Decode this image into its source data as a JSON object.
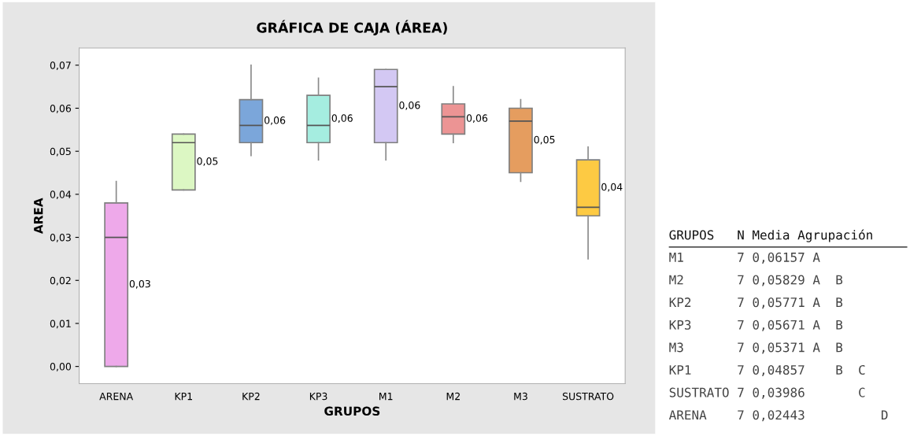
{
  "chart_data": [
    {
      "type": "box",
      "title": "GRÁFICA DE CAJA (ÁREA)",
      "xlabel": "GRUPOS",
      "ylabel": "AREA",
      "categories": [
        "ARENA",
        "KP1",
        "KP2",
        "KP3",
        "M1",
        "M2",
        "M3",
        "SUSTRATO"
      ],
      "colors": [
        "#eea9ea",
        "#dcf7c3",
        "#7ba6da",
        "#a5ede0",
        "#d3c8f3",
        "#ec9494",
        "#e59d5f",
        "#fdca43"
      ],
      "boxes": [
        {
          "low": 0.0,
          "q1": 0.0,
          "median": 0.03,
          "q3": 0.038,
          "high": 0.043
        },
        {
          "low": 0.041,
          "q1": 0.041,
          "median": 0.052,
          "q3": 0.054,
          "high": 0.054
        },
        {
          "low": 0.049,
          "q1": 0.052,
          "median": 0.056,
          "q3": 0.062,
          "high": 0.07
        },
        {
          "low": 0.048,
          "q1": 0.052,
          "median": 0.056,
          "q3": 0.063,
          "high": 0.067
        },
        {
          "low": 0.048,
          "q1": 0.052,
          "median": 0.065,
          "q3": 0.069,
          "high": 0.069
        },
        {
          "low": 0.052,
          "q1": 0.054,
          "median": 0.058,
          "q3": 0.061,
          "high": 0.065
        },
        {
          "low": 0.043,
          "q1": 0.045,
          "median": 0.057,
          "q3": 0.06,
          "high": 0.062
        },
        {
          "low": 0.025,
          "q1": 0.035,
          "median": 0.037,
          "q3": 0.048,
          "high": 0.051
        }
      ],
      "annotations": [
        "0,03",
        "0,05",
        "0,06",
        "0,06",
        "0,06",
        "0,06",
        "0,05",
        "0,04"
      ],
      "ylim": [
        -0.004,
        0.074
      ],
      "yticks": [
        {
          "value": 0.0,
          "label": "0,00"
        },
        {
          "value": 0.01,
          "label": "0,01"
        },
        {
          "value": 0.02,
          "label": "0,02"
        },
        {
          "value": 0.03,
          "label": "0,03"
        },
        {
          "value": 0.04,
          "label": "0,04"
        },
        {
          "value": 0.05,
          "label": "0,05"
        },
        {
          "value": 0.06,
          "label": "0,06"
        },
        {
          "value": 0.07,
          "label": "0,07"
        }
      ],
      "grid": false,
      "legend": false
    },
    {
      "type": "other",
      "annotations": [
        "GRUPOS   N Media Agrupación",
        "M1       7 0,06157 A",
        "M2       7 0,05829 A  B",
        "KP2      7 0,05771 A  B",
        "KP3      7 0,05671 A  B",
        "M3       7 0,05371 A  B",
        "KP1      7 0,04857    B  C",
        "SUSTRATO 7 0,03986       C",
        "ARENA    7 0,02443          D"
      ]
    }
  ]
}
